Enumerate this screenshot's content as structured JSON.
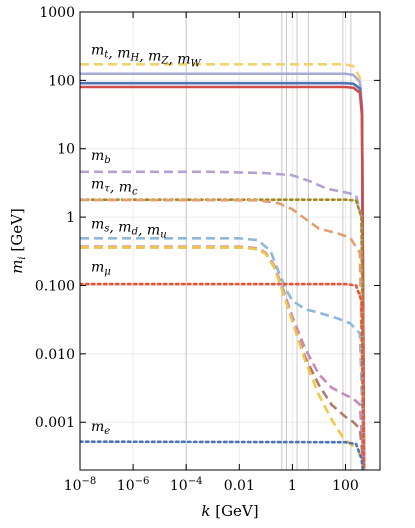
{
  "chart_data": {
    "type": "line",
    "xlabel": "k [GeV]",
    "ylabel": "m_i [GeV]",
    "x_scale": "log",
    "y_scale": "log",
    "xlim": [
      1e-08,
      2000
    ],
    "ylim": [
      0.0002,
      1000
    ],
    "grid": true,
    "x_ticks": [
      {
        "value": 1e-08,
        "label": "10−8"
      },
      {
        "value": 1e-06,
        "label": "10−6"
      },
      {
        "value": 0.0001,
        "label": "10−4"
      },
      {
        "value": 0.01,
        "label": "0.01"
      },
      {
        "value": 1,
        "label": "1"
      },
      {
        "value": 100,
        "label": "100"
      }
    ],
    "y_ticks": [
      {
        "value": 1000,
        "label": "1000"
      },
      {
        "value": 100,
        "label": "100"
      },
      {
        "value": 10,
        "label": "10"
      },
      {
        "value": 1,
        "label": "1"
      },
      {
        "value": 0.1,
        "label": "0.100"
      },
      {
        "value": 0.01,
        "label": "0.010"
      },
      {
        "value": 0.001,
        "label": "0.001"
      }
    ],
    "vertical_lines": [
      0.0001,
      0.4,
      0.6,
      1.5,
      4,
      80,
      160
    ],
    "annotations": [
      {
        "text": "m_t, m_H, m_Z, m_W",
        "x": 2e-08,
        "y": 240
      },
      {
        "text": "m_b",
        "x": 2e-08,
        "y": 6.8
      },
      {
        "text": "m_τ, m_c",
        "x": 2e-08,
        "y": 2.6
      },
      {
        "text": "m_s, m_d, m_u",
        "x": 2e-08,
        "y": 0.68
      },
      {
        "text": "m_μ",
        "x": 2e-08,
        "y": 0.16
      },
      {
        "text": "m_e",
        "x": 2e-08,
        "y": 0.00075
      }
    ],
    "series": [
      {
        "color": "#f2d36b",
        "style": "dashed",
        "points": [
          [
            1e-08,
            172
          ],
          [
            100,
            172
          ],
          [
            200,
            160
          ],
          [
            350,
            110
          ],
          [
            420,
            40
          ],
          [
            500,
            0.0002
          ]
        ]
      },
      {
        "color": "#a7abd8",
        "style": "solid",
        "points": [
          [
            1e-08,
            125
          ],
          [
            100,
            125
          ],
          [
            200,
            120
          ],
          [
            350,
            95
          ],
          [
            420,
            40
          ],
          [
            500,
            0.0002
          ]
        ]
      },
      {
        "color": "#4f74b8",
        "style": "solid",
        "points": [
          [
            1e-08,
            91
          ],
          [
            100,
            91
          ],
          [
            200,
            89
          ],
          [
            350,
            76
          ],
          [
            420,
            35
          ],
          [
            500,
            0.0002
          ]
        ]
      },
      {
        "color": "#d14b4b",
        "style": "solid",
        "points": [
          [
            1e-08,
            80
          ],
          [
            100,
            80
          ],
          [
            200,
            78
          ],
          [
            350,
            66
          ],
          [
            420,
            30
          ],
          [
            500,
            0.0002
          ]
        ]
      },
      {
        "color": "#b3a2d2",
        "style": "dashed",
        "points": [
          [
            1e-08,
            4.6
          ],
          [
            0.001,
            4.6
          ],
          [
            0.1,
            4.4
          ],
          [
            1,
            4.1
          ],
          [
            5,
            3.3
          ],
          [
            20,
            2.6
          ],
          [
            100,
            2.3
          ],
          [
            250,
            2.1
          ],
          [
            400,
            1.0
          ],
          [
            500,
            0.0002
          ]
        ]
      },
      {
        "color": "#a08a1e",
        "style": "dotted",
        "points": [
          [
            1e-08,
            1.8
          ],
          [
            100,
            1.8
          ],
          [
            250,
            1.75
          ],
          [
            400,
            1.0
          ],
          [
            500,
            0.0002
          ]
        ]
      },
      {
        "color": "#e0a070",
        "style": "dashed",
        "points": [
          [
            1e-08,
            1.78
          ],
          [
            0.05,
            1.76
          ],
          [
            0.3,
            1.6
          ],
          [
            1,
            1.3
          ],
          [
            3,
            0.95
          ],
          [
            10,
            0.68
          ],
          [
            50,
            0.58
          ],
          [
            150,
            0.5
          ],
          [
            350,
            0.3
          ],
          [
            500,
            0.0002
          ]
        ]
      },
      {
        "color": "#8fb8dd",
        "style": "dashed",
        "points": [
          [
            1e-08,
            0.49
          ],
          [
            0.01,
            0.49
          ],
          [
            0.05,
            0.46
          ],
          [
            0.15,
            0.32
          ],
          [
            0.3,
            0.16
          ],
          [
            0.6,
            0.085
          ],
          [
            1,
            0.06
          ],
          [
            3,
            0.045
          ],
          [
            10,
            0.04
          ],
          [
            50,
            0.033
          ],
          [
            150,
            0.028
          ],
          [
            350,
            0.02
          ],
          [
            500,
            0.0002
          ]
        ]
      },
      {
        "color": "#c98ab8",
        "style": "dashed",
        "points": [
          [
            1e-08,
            0.37
          ],
          [
            0.01,
            0.37
          ],
          [
            0.05,
            0.35
          ],
          [
            0.1,
            0.3
          ],
          [
            0.2,
            0.2
          ],
          [
            0.4,
            0.1
          ],
          [
            1,
            0.035
          ],
          [
            3,
            0.012
          ],
          [
            10,
            0.005
          ],
          [
            30,
            0.0032
          ],
          [
            100,
            0.0025
          ],
          [
            200,
            0.0022
          ],
          [
            350,
            0.0018
          ],
          [
            500,
            0.0002
          ]
        ]
      },
      {
        "color": "#b37a6a",
        "style": "dashed",
        "points": [
          [
            1e-08,
            0.36
          ],
          [
            0.01,
            0.36
          ],
          [
            0.05,
            0.34
          ],
          [
            0.1,
            0.29
          ],
          [
            0.2,
            0.19
          ],
          [
            0.4,
            0.09
          ],
          [
            1,
            0.03
          ],
          [
            3,
            0.009
          ],
          [
            10,
            0.0035
          ],
          [
            30,
            0.0018
          ],
          [
            100,
            0.0012
          ],
          [
            200,
            0.001
          ],
          [
            350,
            0.0008
          ],
          [
            500,
            0.0002
          ]
        ]
      },
      {
        "color": "#f2c84b",
        "style": "dashed",
        "points": [
          [
            1e-08,
            0.36
          ],
          [
            0.01,
            0.36
          ],
          [
            0.05,
            0.34
          ],
          [
            0.1,
            0.29
          ],
          [
            0.2,
            0.19
          ],
          [
            0.4,
            0.09
          ],
          [
            1,
            0.03
          ],
          [
            3,
            0.008
          ],
          [
            10,
            0.0025
          ],
          [
            30,
            0.0011
          ],
          [
            80,
            0.0006
          ],
          [
            150,
            0.00048
          ],
          [
            300,
            0.0004
          ],
          [
            500,
            0.0002
          ]
        ]
      },
      {
        "color": "#e8553b",
        "style": "dotted",
        "points": [
          [
            1e-08,
            0.105
          ],
          [
            100,
            0.105
          ],
          [
            250,
            0.1
          ],
          [
            400,
            0.06
          ],
          [
            500,
            0.0002
          ]
        ]
      },
      {
        "color": "#4f74b8",
        "style": "dotted",
        "points": [
          [
            1e-08,
            0.00052
          ],
          [
            100,
            0.00051
          ],
          [
            250,
            0.00048
          ],
          [
            400,
            0.0003
          ],
          [
            450,
            0.0002
          ]
        ]
      }
    ]
  }
}
